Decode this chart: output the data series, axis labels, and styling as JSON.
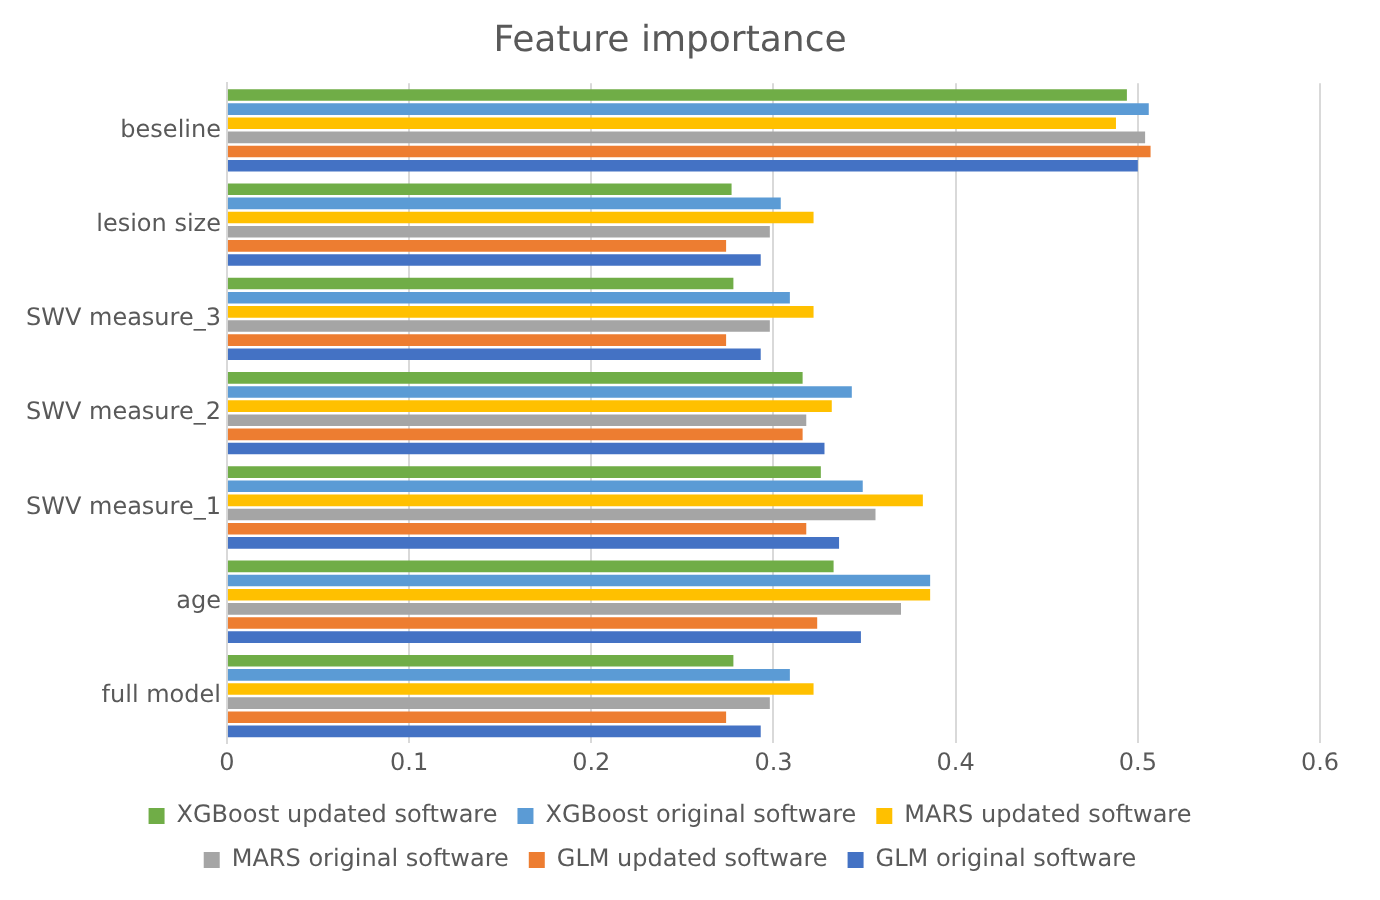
{
  "chart_data": {
    "type": "bar",
    "orientation": "horizontal",
    "title": "Feature importance",
    "categories": [
      "beseline",
      "lesion size",
      "SWV measure_3",
      "SWV measure_2",
      "SWV measure_1",
      "age",
      "full model"
    ],
    "series": [
      {
        "name": "XGBoost updated software",
        "color": "#70ad47",
        "values": [
          0.494,
          0.277,
          0.278,
          0.316,
          0.326,
          0.333,
          0.278
        ]
      },
      {
        "name": "XGBoost original software",
        "color": "#5b9bd5",
        "values": [
          0.506,
          0.304,
          0.309,
          0.343,
          0.349,
          0.386,
          0.309
        ]
      },
      {
        "name": "MARS updated software",
        "color": "#ffc000",
        "values": [
          0.488,
          0.322,
          0.322,
          0.332,
          0.382,
          0.386,
          0.322
        ]
      },
      {
        "name": "MARS original software",
        "color": "#a5a5a5",
        "values": [
          0.504,
          0.298,
          0.298,
          0.318,
          0.356,
          0.37,
          0.298
        ]
      },
      {
        "name": "GLM updated software",
        "color": "#ed7d31",
        "values": [
          0.507,
          0.274,
          0.274,
          0.316,
          0.318,
          0.324,
          0.274
        ]
      },
      {
        "name": "GLM original software",
        "color": "#4472c4",
        "values": [
          0.5,
          0.293,
          0.293,
          0.328,
          0.336,
          0.348,
          0.293
        ]
      }
    ],
    "xlim": [
      0,
      0.6
    ],
    "xticks": [
      0,
      0.1,
      0.2,
      0.3,
      0.4,
      0.5,
      0.6
    ],
    "grid": "x",
    "legend": "bottom"
  }
}
